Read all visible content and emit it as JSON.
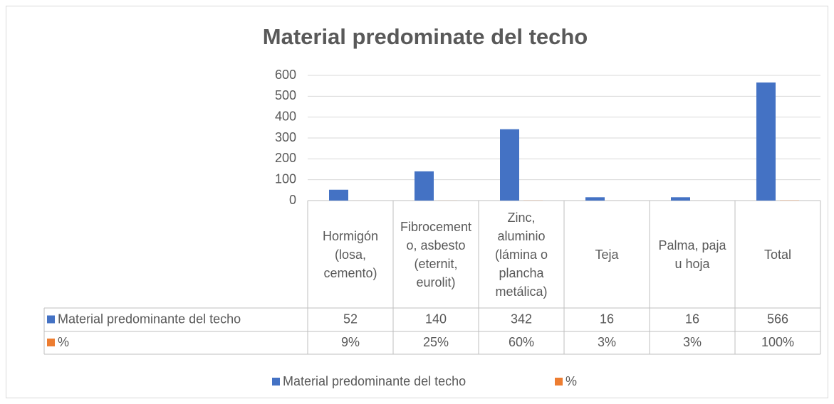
{
  "chart_data": {
    "type": "bar",
    "title": "Material predominate del techo",
    "categories": [
      "Hormigón (losa, cemento)",
      "Fibrocemento, asbesto (eternit, eurolit)",
      "Zinc, aluminio (lámina o plancha metálica)",
      "Teja",
      "Palma, paja u hoja",
      "Total"
    ],
    "series": [
      {
        "name": "Material predominante del techo",
        "color": "#4472c4",
        "values": [
          52,
          140,
          342,
          16,
          16,
          566
        ]
      },
      {
        "name": "%",
        "color": "#ed7d31",
        "values": [
          0.09,
          0.25,
          0.6,
          0.03,
          0.03,
          1
        ],
        "value_labels": [
          "9%",
          "25%",
          "60%",
          "3%",
          "3%",
          "100%"
        ]
      }
    ],
    "ylim": [
      0,
      600
    ],
    "yticks": [
      0,
      100,
      200,
      300,
      400,
      500,
      600
    ],
    "grid": true,
    "legend": "bottom",
    "data_table": true
  }
}
